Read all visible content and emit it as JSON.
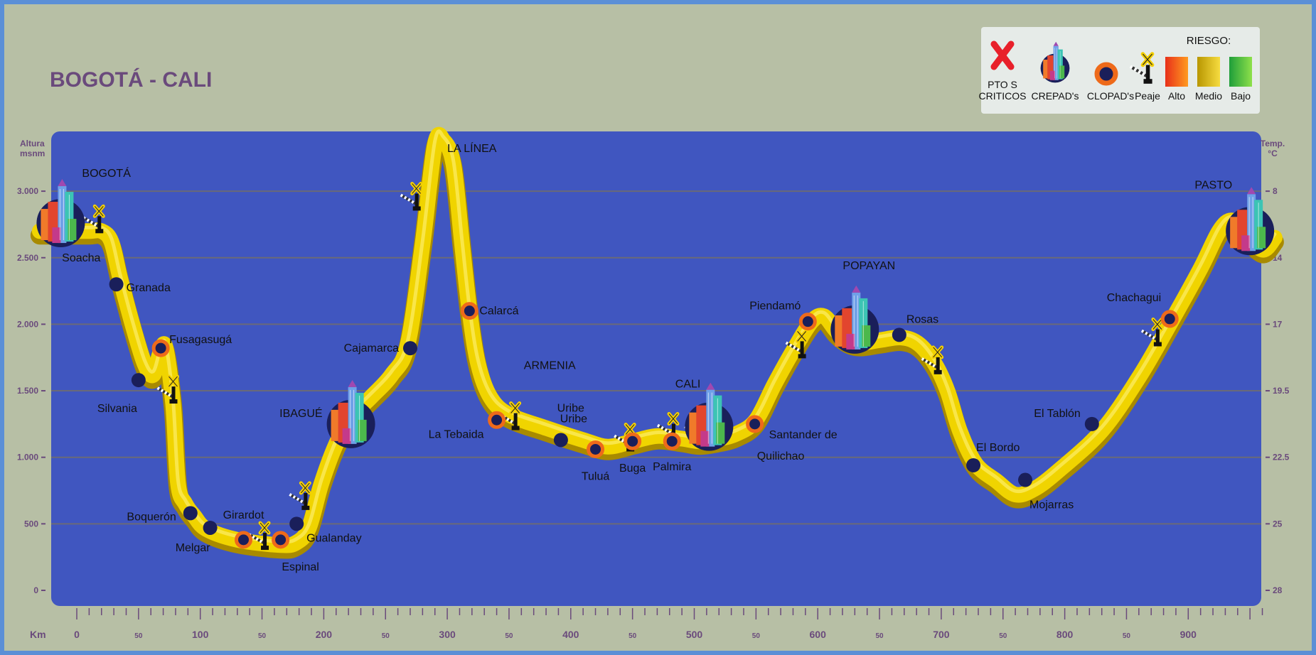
{
  "title": "BOGOTÁ - CALI",
  "colors": {
    "frame": "#5b8fd6",
    "background": "#b7bfa5",
    "plot": "#4056c0",
    "title": "#6a4a7c",
    "road": "#f0d400",
    "road_shadow": "#a88a00",
    "clopad": "#ee6a1a",
    "node": "#1a1f5a",
    "critical": "#e8202a"
  },
  "legend": {
    "riesgo_title": "RIESGO:",
    "items": [
      {
        "icon": "critical-point-icon",
        "label_lines": [
          "PTO S",
          "CRITICOS"
        ]
      },
      {
        "icon": "crepad-city-icon",
        "label_lines": [
          "CREPAD's"
        ]
      },
      {
        "icon": "clopad-ring-icon",
        "label_lines": [
          "CLOPAD's"
        ]
      },
      {
        "icon": "toll-barrier-icon",
        "label_lines": [
          "Peaje"
        ]
      },
      {
        "icon": "risk-high-swatch",
        "label_lines": [
          "Alto"
        ],
        "color": "#f25a20"
      },
      {
        "icon": "risk-medium-swatch",
        "label_lines": [
          "Medio"
        ],
        "color": "#d4b000"
      },
      {
        "icon": "risk-low-swatch",
        "label_lines": [
          "Bajo"
        ],
        "color": "#3fb83f"
      }
    ]
  },
  "axes": {
    "left_title": [
      "Altura",
      "msnm"
    ],
    "right_title": [
      "Temp.",
      "°C"
    ],
    "bottom_title": "Km",
    "altitude_ticks": [
      {
        "alt": 0,
        "label": "0"
      },
      {
        "alt": 500,
        "label": "500"
      },
      {
        "alt": 1000,
        "label": "1.000"
      },
      {
        "alt": 1500,
        "label": "1.500"
      },
      {
        "alt": 2000,
        "label": "2.000"
      },
      {
        "alt": 2500,
        "label": "2.500"
      },
      {
        "alt": 3000,
        "label": "3.000"
      }
    ],
    "temperature_ticks": [
      {
        "alt": 0,
        "label": "28"
      },
      {
        "alt": 500,
        "label": "25"
      },
      {
        "alt": 1000,
        "label": "22.5"
      },
      {
        "alt": 1500,
        "label": "19.5"
      },
      {
        "alt": 2000,
        "label": "17"
      },
      {
        "alt": 2500,
        "label": "14"
      },
      {
        "alt": 3000,
        "label": "8"
      }
    ],
    "km_labels": [
      {
        "km": 0,
        "label": "0"
      },
      {
        "km": 50,
        "label": "50"
      },
      {
        "km": 100,
        "label": "100"
      },
      {
        "km": 150,
        "label": "50"
      },
      {
        "km": 200,
        "label": "200"
      },
      {
        "km": 250,
        "label": "50"
      },
      {
        "km": 300,
        "label": "300"
      },
      {
        "km": 350,
        "label": "50"
      },
      {
        "km": 400,
        "label": "400"
      },
      {
        "km": 450,
        "label": "50"
      },
      {
        "km": 500,
        "label": "500"
      },
      {
        "km": 550,
        "label": "50"
      },
      {
        "km": 600,
        "label": "600"
      },
      {
        "km": 650,
        "label": "50"
      },
      {
        "km": 700,
        "label": "700"
      },
      {
        "km": 750,
        "label": "50"
      },
      {
        "km": 800,
        "label": "800"
      },
      {
        "km": 850,
        "label": "50"
      },
      {
        "km": 900,
        "label": "900"
      }
    ]
  },
  "route_profile": [
    [
      -30,
      2700
    ],
    [
      -10,
      2700
    ],
    [
      10,
      2700
    ],
    [
      20,
      2700
    ],
    [
      28,
      2620
    ],
    [
      35,
      2350
    ],
    [
      45,
      2000
    ],
    [
      55,
      1700
    ],
    [
      62,
      1620
    ],
    [
      68,
      1800
    ],
    [
      72,
      1820
    ],
    [
      78,
      1400
    ],
    [
      82,
      800
    ],
    [
      88,
      650
    ],
    [
      95,
      560
    ],
    [
      105,
      460
    ],
    [
      130,
      380
    ],
    [
      165,
      340
    ],
    [
      178,
      360
    ],
    [
      188,
      470
    ],
    [
      198,
      800
    ],
    [
      210,
      1100
    ],
    [
      222,
      1300
    ],
    [
      238,
      1450
    ],
    [
      255,
      1620
    ],
    [
      268,
      1850
    ],
    [
      280,
      2600
    ],
    [
      290,
      3350
    ],
    [
      297,
      3380
    ],
    [
      305,
      3200
    ],
    [
      312,
      2600
    ],
    [
      318,
      2100
    ],
    [
      325,
      1700
    ],
    [
      335,
      1450
    ],
    [
      350,
      1320
    ],
    [
      380,
      1220
    ],
    [
      410,
      1130
    ],
    [
      430,
      1080
    ],
    [
      450,
      1120
    ],
    [
      470,
      1160
    ],
    [
      490,
      1140
    ],
    [
      505,
      1120
    ],
    [
      520,
      1140
    ],
    [
      535,
      1180
    ],
    [
      550,
      1280
    ],
    [
      565,
      1550
    ],
    [
      580,
      1800
    ],
    [
      595,
      2020
    ],
    [
      605,
      2060
    ],
    [
      615,
      1950
    ],
    [
      625,
      1880
    ],
    [
      635,
      1860
    ],
    [
      650,
      1880
    ],
    [
      668,
      1900
    ],
    [
      682,
      1850
    ],
    [
      695,
      1700
    ],
    [
      705,
      1500
    ],
    [
      715,
      1200
    ],
    [
      728,
      950
    ],
    [
      745,
      820
    ],
    [
      760,
      720
    ],
    [
      775,
      760
    ],
    [
      795,
      900
    ],
    [
      830,
      1200
    ],
    [
      860,
      1600
    ],
    [
      885,
      2000
    ],
    [
      910,
      2420
    ],
    [
      925,
      2700
    ],
    [
      935,
      2780
    ],
    [
      945,
      2700
    ],
    [
      960,
      2560
    ],
    [
      970,
      2650
    ]
  ],
  "places": [
    {
      "name": "BOGOTÁ",
      "type": "crepad",
      "km": -13,
      "alt": 2760,
      "label_dx": 30,
      "label_dy": -70,
      "anchor": "start"
    },
    {
      "name": "Soacha",
      "type": "label",
      "km": -12,
      "alt": 2500,
      "label_dx": 0,
      "label_dy": 0,
      "anchor": "start"
    },
    {
      "name": "Granada",
      "type": "node",
      "km": 32,
      "alt": 2300,
      "label_dx": 14,
      "label_dy": 5,
      "anchor": "start"
    },
    {
      "name": "Fusagasugá",
      "type": "clopad",
      "km": 68,
      "alt": 1820,
      "label_dx": 12,
      "label_dy": -12,
      "anchor": "start"
    },
    {
      "name": "Silvania",
      "type": "node",
      "km": 50,
      "alt": 1580,
      "label_dx": -2,
      "label_dy": 40,
      "anchor": "end"
    },
    {
      "name": "Boquerón",
      "type": "node",
      "km": 92,
      "alt": 580,
      "label_dx": -20,
      "label_dy": 5,
      "anchor": "end"
    },
    {
      "name": "Melgar",
      "type": "node",
      "km": 108,
      "alt": 470,
      "label_dx": 0,
      "label_dy": 28,
      "anchor": "end"
    },
    {
      "name": "Girardot",
      "type": "clopad",
      "km": 135,
      "alt": 380,
      "label_dx": 0,
      "label_dy": -35,
      "anchor": "middle"
    },
    {
      "name": "Espinal",
      "type": "clopad",
      "km": 165,
      "alt": 380,
      "label_dx": 28,
      "label_dy": 38,
      "anchor": "middle"
    },
    {
      "name": "Gualanday",
      "type": "node",
      "km": 178,
      "alt": 500,
      "label_dx": 14,
      "label_dy": 20,
      "anchor": "start"
    },
    {
      "name": "IBAGUÉ",
      "type": "crepad",
      "km": 222,
      "alt": 1250,
      "label_dx": -40,
      "label_dy": -15,
      "anchor": "end"
    },
    {
      "name": "Cajamarca",
      "type": "node",
      "km": 270,
      "alt": 1820,
      "label_dx": -16,
      "label_dy": 0,
      "anchor": "end"
    },
    {
      "name": "LA LÍNEA",
      "type": "label",
      "km": 300,
      "alt": 3320,
      "label_dx": 0,
      "label_dy": 0,
      "anchor": "start"
    },
    {
      "name": "Calarcá",
      "type": "clopad",
      "km": 318,
      "alt": 2100,
      "label_dx": 14,
      "label_dy": 0,
      "anchor": "start"
    },
    {
      "name": "ARMENIA",
      "type": "label",
      "km": 362,
      "alt": 1690,
      "label_dx": 0,
      "label_dy": 0,
      "anchor": "start"
    },
    {
      "name": "La Tebaida",
      "type": "clopad",
      "km": 340,
      "alt": 1280,
      "label_dx": -18,
      "label_dy": 20,
      "anchor": "end"
    },
    {
      "name": "Uribe",
      "type": "label",
      "km": 400,
      "alt": 1370,
      "label_dx": 0,
      "label_dy": 0,
      "anchor": "middle"
    },
    {
      "name": "Uribe",
      "type": "node",
      "km": 392,
      "alt": 1130,
      "label_dx": 18,
      "label_dy": -30,
      "anchor": "middle"
    },
    {
      "name": "Tuluá",
      "type": "clopad",
      "km": 420,
      "alt": 1060,
      "label_dx": 0,
      "label_dy": 38,
      "anchor": "middle"
    },
    {
      "name": "Buga",
      "type": "clopad",
      "km": 450,
      "alt": 1120,
      "label_dx": 0,
      "label_dy": 38,
      "anchor": "middle"
    },
    {
      "name": "Palmira",
      "type": "clopad",
      "km": 482,
      "alt": 1120,
      "label_dx": 0,
      "label_dy": 36,
      "anchor": "middle"
    },
    {
      "name": "CALI",
      "type": "crepad",
      "km": 512,
      "alt": 1230,
      "label_dx": -12,
      "label_dy": -60,
      "anchor": "end"
    },
    {
      "name": "Santander de",
      "type": "clopad",
      "km": 549,
      "alt": 1250,
      "label_dx": 20,
      "label_dy": 15,
      "anchor": "start"
    },
    {
      "name": "Quilichao",
      "type": "label",
      "km": 570,
      "alt": 1010,
      "label_dx": 0,
      "label_dy": 0,
      "anchor": "middle"
    },
    {
      "name": "Piendamó",
      "type": "clopad",
      "km": 592,
      "alt": 2020,
      "label_dx": -10,
      "label_dy": -22,
      "anchor": "end"
    },
    {
      "name": "POPAYAN",
      "type": "crepad",
      "km": 630,
      "alt": 1960,
      "label_dx": 20,
      "label_dy": -90,
      "anchor": "middle"
    },
    {
      "name": "Rosas",
      "type": "node",
      "km": 666,
      "alt": 1920,
      "label_dx": 10,
      "label_dy": -22,
      "anchor": "start"
    },
    {
      "name": "El Bordo",
      "type": "node",
      "km": 726,
      "alt": 940,
      "label_dx": 4,
      "label_dy": -25,
      "anchor": "start"
    },
    {
      "name": "Mojarras",
      "type": "node",
      "km": 768,
      "alt": 830,
      "label_dx": 6,
      "label_dy": 35,
      "anchor": "start"
    },
    {
      "name": "El Tablón",
      "type": "node",
      "km": 822,
      "alt": 1250,
      "label_dx": -16,
      "label_dy": -15,
      "anchor": "end"
    },
    {
      "name": "Chachagui",
      "type": "clopad",
      "km": 885,
      "alt": 2040,
      "label_dx": -12,
      "label_dy": -30,
      "anchor": "end"
    },
    {
      "name": "PASTO",
      "type": "crepad",
      "km": 950,
      "alt": 2700,
      "label_dx": -25,
      "label_dy": -65,
      "anchor": "end"
    }
  ],
  "tolls": [
    {
      "km": 18,
      "alt": 2780
    },
    {
      "km": 78,
      "alt": 1500
    },
    {
      "km": 152,
      "alt": 400
    },
    {
      "km": 185,
      "alt": 700
    },
    {
      "km": 275,
      "alt": 2950
    },
    {
      "km": 355,
      "alt": 1300
    },
    {
      "km": 448,
      "alt": 1140
    },
    {
      "km": 483,
      "alt": 1220
    },
    {
      "km": 505,
      "alt": 1210
    },
    {
      "km": 587,
      "alt": 1840
    },
    {
      "km": 697,
      "alt": 1720
    },
    {
      "km": 875,
      "alt": 1930
    }
  ]
}
